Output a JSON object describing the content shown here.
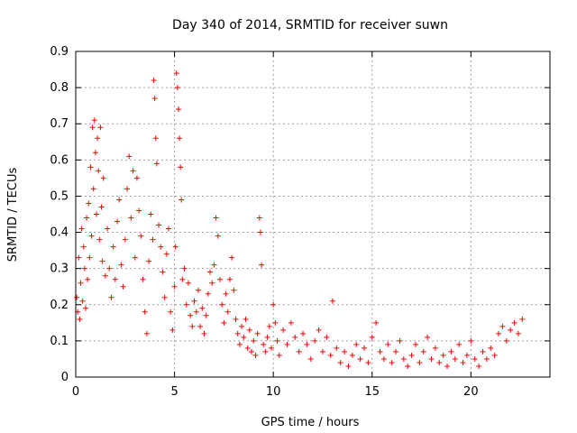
{
  "chart_data": {
    "type": "scatter",
    "title": "Day 340 of 2014, SRMTID for receiver suwn",
    "xlabel": "GPS time / hours",
    "ylabel": "SRMTID / TECUs",
    "xlim": [
      0,
      24
    ],
    "ylim": [
      0,
      0.9
    ],
    "x_ticks": [
      0,
      5,
      10,
      15,
      20
    ],
    "x_tick_labels": [
      "0",
      "5",
      "10",
      "15",
      "20"
    ],
    "y_ticks": [
      0,
      0.1,
      0.2,
      0.3,
      0.4,
      0.5,
      0.6,
      0.7,
      0.8,
      0.9
    ],
    "y_tick_labels": [
      "0",
      "0.1",
      "0.2",
      "0.3",
      "0.4",
      "0.5",
      "0.6",
      "0.7",
      "0.8",
      "0.9"
    ],
    "grid": true,
    "marker": "plus",
    "color": "#ff0000",
    "series": [
      {
        "name": "SRMTID",
        "points": [
          [
            0.05,
            0.22
          ],
          [
            0.1,
            0.18
          ],
          [
            0.15,
            0.33
          ],
          [
            0.2,
            0.16
          ],
          [
            0.25,
            0.26
          ],
          [
            0.3,
            0.41
          ],
          [
            0.35,
            0.21
          ],
          [
            0.4,
            0.36
          ],
          [
            0.45,
            0.3
          ],
          [
            0.5,
            0.19
          ],
          [
            0.55,
            0.44
          ],
          [
            0.6,
            0.27
          ],
          [
            0.65,
            0.48
          ],
          [
            0.7,
            0.33
          ],
          [
            0.75,
            0.58
          ],
          [
            0.8,
            0.39
          ],
          [
            0.85,
            0.69
          ],
          [
            0.9,
            0.52
          ],
          [
            0.95,
            0.71
          ],
          [
            1.0,
            0.62
          ],
          [
            1.05,
            0.45
          ],
          [
            1.1,
            0.66
          ],
          [
            1.15,
            0.57
          ],
          [
            1.2,
            0.38
          ],
          [
            1.25,
            0.69
          ],
          [
            1.3,
            0.47
          ],
          [
            1.35,
            0.32
          ],
          [
            1.4,
            0.55
          ],
          [
            1.5,
            0.28
          ],
          [
            1.6,
            0.41
          ],
          [
            1.7,
            0.3
          ],
          [
            1.8,
            0.22
          ],
          [
            1.9,
            0.36
          ],
          [
            2.0,
            0.27
          ],
          [
            2.1,
            0.43
          ],
          [
            2.2,
            0.49
          ],
          [
            2.3,
            0.31
          ],
          [
            2.4,
            0.25
          ],
          [
            2.5,
            0.38
          ],
          [
            2.6,
            0.52
          ],
          [
            2.7,
            0.61
          ],
          [
            2.8,
            0.44
          ],
          [
            2.9,
            0.57
          ],
          [
            3.0,
            0.33
          ],
          [
            3.1,
            0.55
          ],
          [
            3.2,
            0.46
          ],
          [
            3.3,
            0.39
          ],
          [
            3.4,
            0.27
          ],
          [
            3.5,
            0.18
          ],
          [
            3.6,
            0.12
          ],
          [
            3.7,
            0.32
          ],
          [
            3.8,
            0.45
          ],
          [
            3.9,
            0.38
          ],
          [
            3.95,
            0.82
          ],
          [
            4.0,
            0.77
          ],
          [
            4.05,
            0.66
          ],
          [
            4.1,
            0.59
          ],
          [
            4.2,
            0.42
          ],
          [
            4.3,
            0.36
          ],
          [
            4.4,
            0.29
          ],
          [
            4.5,
            0.22
          ],
          [
            4.6,
            0.34
          ],
          [
            4.7,
            0.41
          ],
          [
            4.8,
            0.18
          ],
          [
            4.9,
            0.13
          ],
          [
            5.0,
            0.25
          ],
          [
            5.05,
            0.36
          ],
          [
            5.1,
            0.84
          ],
          [
            5.15,
            0.8
          ],
          [
            5.2,
            0.74
          ],
          [
            5.25,
            0.66
          ],
          [
            5.3,
            0.58
          ],
          [
            5.35,
            0.49
          ],
          [
            5.4,
            0.27
          ],
          [
            5.5,
            0.3
          ],
          [
            5.6,
            0.2
          ],
          [
            5.7,
            0.26
          ],
          [
            5.8,
            0.17
          ],
          [
            5.9,
            0.14
          ],
          [
            6.0,
            0.21
          ],
          [
            6.1,
            0.18
          ],
          [
            6.2,
            0.24
          ],
          [
            6.3,
            0.14
          ],
          [
            6.4,
            0.19
          ],
          [
            6.5,
            0.12
          ],
          [
            6.6,
            0.17
          ],
          [
            6.7,
            0.23
          ],
          [
            6.8,
            0.29
          ],
          [
            6.9,
            0.26
          ],
          [
            7.0,
            0.31
          ],
          [
            7.1,
            0.44
          ],
          [
            7.2,
            0.39
          ],
          [
            7.3,
            0.27
          ],
          [
            7.4,
            0.2
          ],
          [
            7.5,
            0.15
          ],
          [
            7.6,
            0.23
          ],
          [
            7.7,
            0.18
          ],
          [
            7.8,
            0.27
          ],
          [
            7.9,
            0.33
          ],
          [
            8.0,
            0.24
          ],
          [
            8.1,
            0.16
          ],
          [
            8.2,
            0.12
          ],
          [
            8.3,
            0.09
          ],
          [
            8.4,
            0.14
          ],
          [
            8.5,
            0.11
          ],
          [
            8.6,
            0.16
          ],
          [
            8.7,
            0.08
          ],
          [
            8.8,
            0.13
          ],
          [
            8.9,
            0.07
          ],
          [
            9.0,
            0.1
          ],
          [
            9.1,
            0.06
          ],
          [
            9.2,
            0.12
          ],
          [
            9.3,
            0.44
          ],
          [
            9.35,
            0.4
          ],
          [
            9.4,
            0.31
          ],
          [
            9.5,
            0.09
          ],
          [
            9.6,
            0.07
          ],
          [
            9.7,
            0.11
          ],
          [
            9.8,
            0.14
          ],
          [
            9.9,
            0.08
          ],
          [
            10.0,
            0.2
          ],
          [
            10.1,
            0.15
          ],
          [
            10.2,
            0.1
          ],
          [
            10.3,
            0.06
          ],
          [
            10.5,
            0.13
          ],
          [
            10.7,
            0.09
          ],
          [
            10.9,
            0.15
          ],
          [
            11.1,
            0.11
          ],
          [
            11.3,
            0.07
          ],
          [
            11.5,
            0.12
          ],
          [
            11.7,
            0.09
          ],
          [
            11.9,
            0.05
          ],
          [
            12.1,
            0.1
          ],
          [
            12.3,
            0.13
          ],
          [
            12.5,
            0.07
          ],
          [
            12.7,
            0.11
          ],
          [
            12.9,
            0.06
          ],
          [
            13.0,
            0.21
          ],
          [
            13.2,
            0.08
          ],
          [
            13.4,
            0.04
          ],
          [
            13.6,
            0.07
          ],
          [
            13.8,
            0.03
          ],
          [
            14.0,
            0.06
          ],
          [
            14.2,
            0.09
          ],
          [
            14.4,
            0.05
          ],
          [
            14.6,
            0.08
          ],
          [
            14.8,
            0.04
          ],
          [
            15.0,
            0.11
          ],
          [
            15.2,
            0.15
          ],
          [
            15.4,
            0.07
          ],
          [
            15.6,
            0.05
          ],
          [
            15.8,
            0.09
          ],
          [
            16.0,
            0.04
          ],
          [
            16.2,
            0.07
          ],
          [
            16.4,
            0.1
          ],
          [
            16.6,
            0.05
          ],
          [
            16.8,
            0.03
          ],
          [
            17.0,
            0.06
          ],
          [
            17.2,
            0.09
          ],
          [
            17.4,
            0.04
          ],
          [
            17.6,
            0.07
          ],
          [
            17.8,
            0.11
          ],
          [
            18.0,
            0.05
          ],
          [
            18.2,
            0.08
          ],
          [
            18.4,
            0.04
          ],
          [
            18.6,
            0.06
          ],
          [
            18.8,
            0.03
          ],
          [
            19.0,
            0.07
          ],
          [
            19.2,
            0.05
          ],
          [
            19.4,
            0.09
          ],
          [
            19.6,
            0.04
          ],
          [
            19.8,
            0.06
          ],
          [
            20.0,
            0.1
          ],
          [
            20.2,
            0.05
          ],
          [
            20.4,
            0.03
          ],
          [
            20.6,
            0.07
          ],
          [
            20.8,
            0.05
          ],
          [
            21.0,
            0.08
          ],
          [
            21.2,
            0.06
          ],
          [
            21.4,
            0.12
          ],
          [
            21.6,
            0.14
          ],
          [
            21.8,
            0.1
          ],
          [
            22.0,
            0.13
          ],
          [
            22.2,
            0.15
          ],
          [
            22.4,
            0.12
          ],
          [
            22.6,
            0.16
          ]
        ]
      }
    ]
  }
}
